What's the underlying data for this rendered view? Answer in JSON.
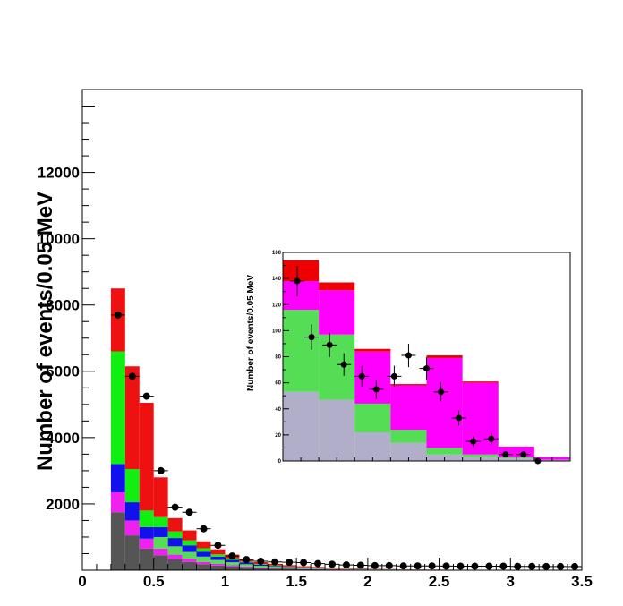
{
  "chart_data": [
    {
      "type": "bar",
      "stacked": true,
      "ylabel": "Number of events/0.05 MeV",
      "xlabel": "",
      "xlim": [
        0,
        3.5
      ],
      "ylim": [
        0,
        14500
      ],
      "xticks": [
        "0",
        "0.5",
        "1",
        "1.5",
        "2",
        "2.5",
        "3",
        "3.5"
      ],
      "yticks": [
        "2000",
        "4000",
        "6000",
        "8000",
        "10000",
        "12000"
      ],
      "x_bin_low": [
        0.2,
        0.3,
        0.4,
        0.5,
        0.6,
        0.7,
        0.8,
        0.9,
        1.0,
        1.1,
        1.2,
        1.3,
        1.4,
        1.5,
        1.6,
        1.7,
        1.8,
        1.9,
        2.0,
        2.1,
        2.2,
        2.3,
        2.4,
        2.5,
        2.6,
        2.7,
        2.8,
        2.9,
        3.0,
        3.1,
        3.2,
        3.3,
        3.4
      ],
      "bin_width": 0.1,
      "series": [
        {
          "color": "#555555",
          "values": [
            1750,
            1050,
            650,
            450,
            330,
            250,
            180,
            140,
            110,
            80,
            60,
            50,
            40,
            35,
            30,
            25,
            20,
            18,
            15,
            12,
            10,
            8,
            6,
            5,
            4,
            3,
            3,
            2,
            2,
            2,
            1,
            1,
            1
          ]
        },
        {
          "color": "#ee22ee",
          "values": [
            600,
            450,
            300,
            200,
            140,
            100,
            70,
            50,
            40,
            30,
            22,
            18,
            15,
            12,
            10,
            8,
            7,
            6,
            5,
            4,
            4,
            3,
            3,
            2,
            2,
            2,
            1,
            1,
            1,
            1,
            1,
            1,
            1
          ]
        },
        {
          "color": "#55dd55",
          "values": [
            0,
            0,
            0,
            350,
            250,
            200,
            160,
            120,
            90,
            70,
            50,
            40,
            32,
            25,
            20,
            15,
            12,
            10,
            8,
            6,
            5,
            4,
            3,
            3,
            2,
            2,
            1,
            1,
            1,
            1,
            1,
            1,
            1
          ]
        },
        {
          "color": "#1111ee",
          "values": [
            850,
            550,
            350,
            300,
            250,
            200,
            150,
            100,
            70,
            50,
            30,
            20,
            15,
            10,
            8,
            6,
            5,
            4,
            3,
            3,
            2,
            2,
            2,
            1,
            1,
            1,
            1,
            1,
            1,
            1,
            1,
            1,
            1
          ]
        },
        {
          "color": "#11ee11",
          "values": [
            3400,
            1000,
            500,
            300,
            200,
            150,
            100,
            70,
            50,
            30,
            20,
            15,
            10,
            8,
            6,
            5,
            4,
            3,
            2,
            2,
            2,
            1,
            1,
            1,
            1,
            1,
            1,
            1,
            1,
            1,
            1,
            1,
            1
          ]
        },
        {
          "color": "#ee1111",
          "values": [
            1900,
            3100,
            3250,
            1200,
            400,
            300,
            210,
            150,
            110,
            80,
            60,
            50,
            40,
            30,
            25,
            20,
            15,
            12,
            10,
            8,
            6,
            5,
            4,
            3,
            3,
            2,
            2,
            2,
            1,
            1,
            1,
            1,
            1
          ]
        }
      ],
      "points": {
        "x": [
          0.25,
          0.35,
          0.45,
          0.55,
          0.65,
          0.75,
          0.85,
          0.95,
          1.05,
          1.15,
          1.25,
          1.35,
          1.45,
          1.55,
          1.65,
          1.75,
          1.85,
          1.95,
          2.05,
          2.15,
          2.25,
          2.35,
          2.45,
          2.55,
          2.65,
          2.75,
          2.85,
          2.95,
          3.05,
          3.15,
          3.25,
          3.35,
          3.45
        ],
        "y": [
          7700,
          5850,
          5250,
          3000,
          1900,
          1750,
          1250,
          750,
          430,
          320,
          270,
          250,
          240,
          230,
          200,
          180,
          160,
          150,
          140,
          140,
          130,
          130,
          130,
          125,
          120,
          120,
          120,
          120,
          115,
          115,
          110,
          110,
          110
        ]
      }
    },
    {
      "type": "bar",
      "stacked": true,
      "inset": true,
      "ylabel": "Number of events/0.05 MeV",
      "xlim": [
        0,
        8
      ],
      "ylim": [
        0,
        160
      ],
      "yticks": [
        "0",
        "20",
        "40",
        "60",
        "80",
        "100",
        "120",
        "140",
        "160"
      ],
      "x_bin_low": [
        0,
        1,
        2,
        3,
        4,
        5,
        6,
        7
      ],
      "bin_width": 1,
      "series": [
        {
          "color": "#b0aec8",
          "values": [
            53,
            47,
            22,
            14,
            5,
            3,
            2,
            1
          ]
        },
        {
          "color": "#55dd55",
          "values": [
            63,
            50,
            22,
            10,
            5,
            2,
            1,
            0
          ]
        },
        {
          "color": "#ff00ff",
          "values": [
            22,
            34,
            40,
            34,
            69,
            55,
            8,
            2
          ]
        },
        {
          "color": "#ee0000",
          "values": [
            16,
            6,
            2,
            1,
            2,
            1,
            0,
            0
          ]
        }
      ],
      "points": {
        "x": [
          0.4,
          0.8,
          1.3,
          1.7,
          2.2,
          2.6,
          3.1,
          3.5,
          4.0,
          4.4,
          4.9,
          5.3,
          5.8,
          6.2,
          6.7,
          7.1
        ],
        "y": [
          138,
          95,
          89,
          74,
          65,
          55,
          65,
          81,
          71,
          53,
          33,
          15,
          17,
          5,
          5,
          0
        ]
      }
    }
  ]
}
